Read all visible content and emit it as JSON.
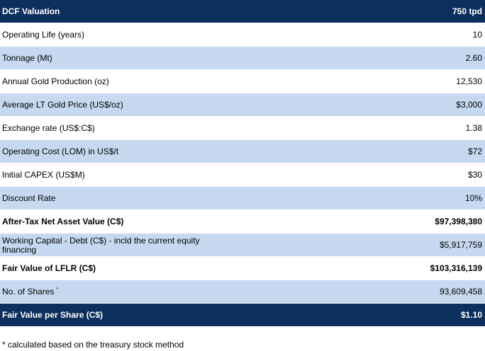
{
  "header": {
    "label": "DCF Valuation",
    "value": "750 tpd"
  },
  "rows": [
    {
      "label": "Operating Life (years)",
      "value": "10"
    },
    {
      "label": "Tonnage (Mt)",
      "value": "2.60"
    },
    {
      "label": "Annual Gold Production (oz)",
      "value": "12,530"
    },
    {
      "label": "Average LT Gold Price (US$/oz)",
      "value": "$3,000"
    },
    {
      "label": "Exchange rate (US$:C$)",
      "value": "1.38"
    },
    {
      "label": "Operating Cost (LOM) in US$/t",
      "value": "$72"
    },
    {
      "label": "Initial CAPEX (US$M)",
      "value": "$30"
    },
    {
      "label": "Discount Rate",
      "value": "10%"
    },
    {
      "label": "After-Tax Net Asset Value (C$)",
      "value": "$97,398,380",
      "bold": true
    },
    {
      "label": "Working Capital - Debt (C$) - incld the current equity financing",
      "value": "$5,917,759"
    },
    {
      "label": "Fair Value of LFLR (C$)",
      "value": "$103,316,139",
      "bold": true
    },
    {
      "label": "No. of Shares",
      "marker": "*",
      "value": "93,609,458"
    }
  ],
  "total": {
    "label": "Fair Value per Share (C$)",
    "value": "$1.10"
  },
  "footnote": "* calculated based on the treasury stock method"
}
